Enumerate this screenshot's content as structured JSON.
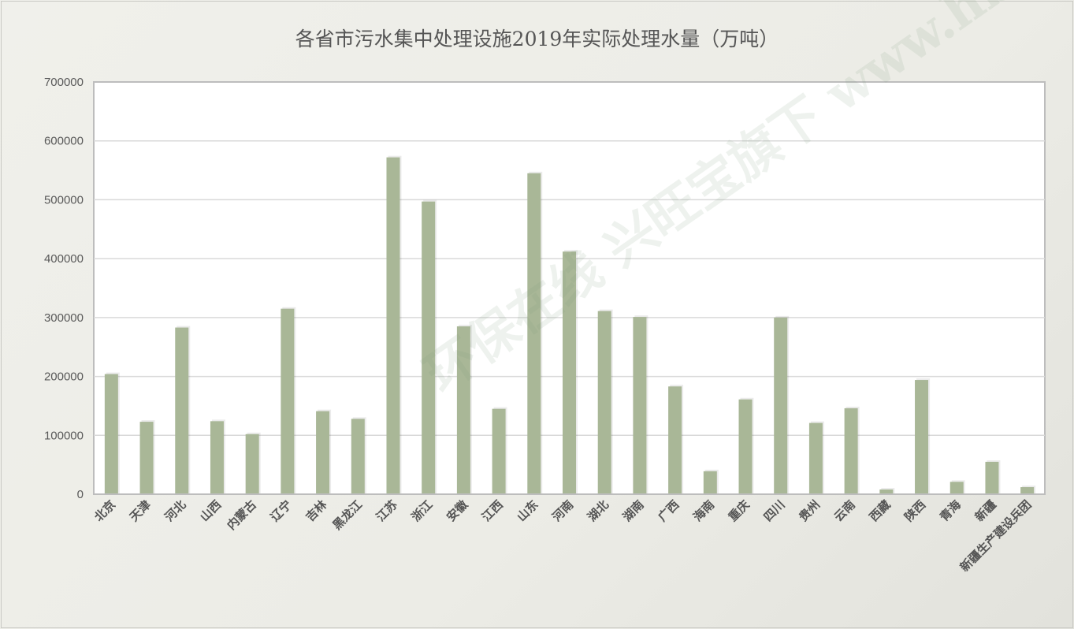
{
  "chart_data": {
    "type": "bar",
    "title": "各省市污水集中处理设施2019年实际处理水量（万吨）",
    "xlabel": "",
    "ylabel": "",
    "ylim": [
      0,
      700000
    ],
    "yticks": [
      "0",
      "100000",
      "200000",
      "300000",
      "400000",
      "500000",
      "600000",
      "700000"
    ],
    "grid": true,
    "bar_color": "#a9b797",
    "categories": [
      "北京",
      "天津",
      "河北",
      "山西",
      "内蒙古",
      "辽宁",
      "吉林",
      "黑龙江",
      "江苏",
      "浙江",
      "安徽",
      "江西",
      "山东",
      "河南",
      "湖北",
      "湖南",
      "广西",
      "海南",
      "重庆",
      "四川",
      "贵州",
      "云南",
      "西藏",
      "陕西",
      "青海",
      "新疆",
      "新疆生产建设兵团"
    ],
    "values": [
      204000,
      123000,
      283000,
      124000,
      102000,
      315000,
      141000,
      128000,
      572000,
      497000,
      285000,
      145000,
      545000,
      412000,
      311000,
      301000,
      183000,
      39000,
      161000,
      300000,
      121000,
      146000,
      8000,
      194000,
      21000,
      55000,
      12000
    ]
  },
  "watermark": "环保在线 兴旺宝旗下 www.hbzhan.com"
}
